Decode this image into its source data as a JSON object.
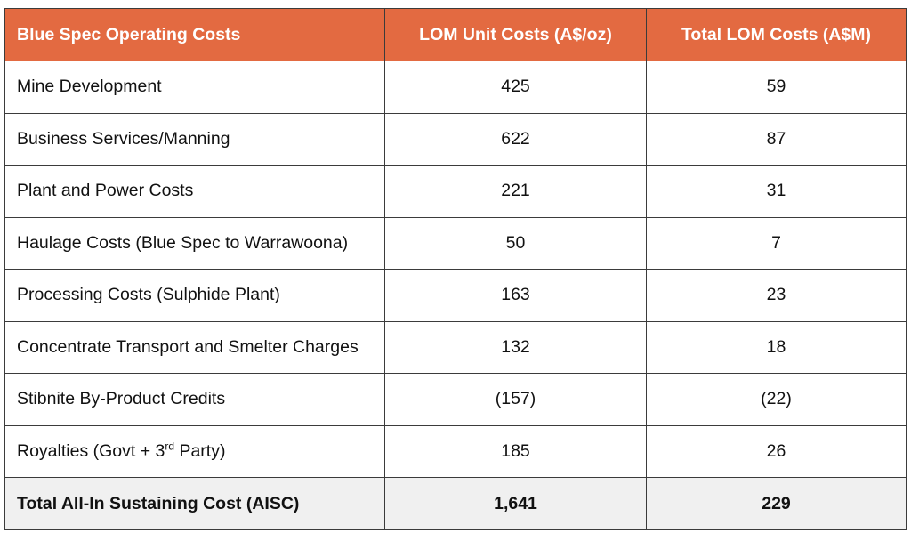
{
  "table": {
    "headers": [
      "Blue Spec Operating Costs",
      "LOM Unit Costs (A$/oz)",
      "Total LOM Costs (A$M)"
    ],
    "rows": [
      {
        "label": "Mine Development",
        "unit_cost": "425",
        "total_cost": "59"
      },
      {
        "label": "Business Services/Manning",
        "unit_cost": "622",
        "total_cost": "87"
      },
      {
        "label": "Plant and Power Costs",
        "unit_cost": "221",
        "total_cost": "31"
      },
      {
        "label": "Haulage Costs (Blue Spec to Warrawoona)",
        "unit_cost": "50",
        "total_cost": "7"
      },
      {
        "label": "Processing Costs (Sulphide Plant)",
        "unit_cost": "163",
        "total_cost": "23"
      },
      {
        "label": "Concentrate Transport and Smelter Charges",
        "unit_cost": "132",
        "total_cost": "18"
      },
      {
        "label": "Stibnite By-Product Credits",
        "unit_cost": "(157)",
        "total_cost": "(22)"
      },
      {
        "label_pre": "Royalties (Govt + 3",
        "label_sup": "rd",
        "label_post": " Party)",
        "unit_cost": "185",
        "total_cost": "26"
      }
    ],
    "total": {
      "label": "Total All-In Sustaining Cost (AISC)",
      "unit_cost": "1,641",
      "total_cost": "229"
    }
  },
  "colors": {
    "header_bg": "#e36a41",
    "header_text": "#ffffff",
    "total_row_bg": "#f0f0f0",
    "border": "#3b3b3b"
  }
}
